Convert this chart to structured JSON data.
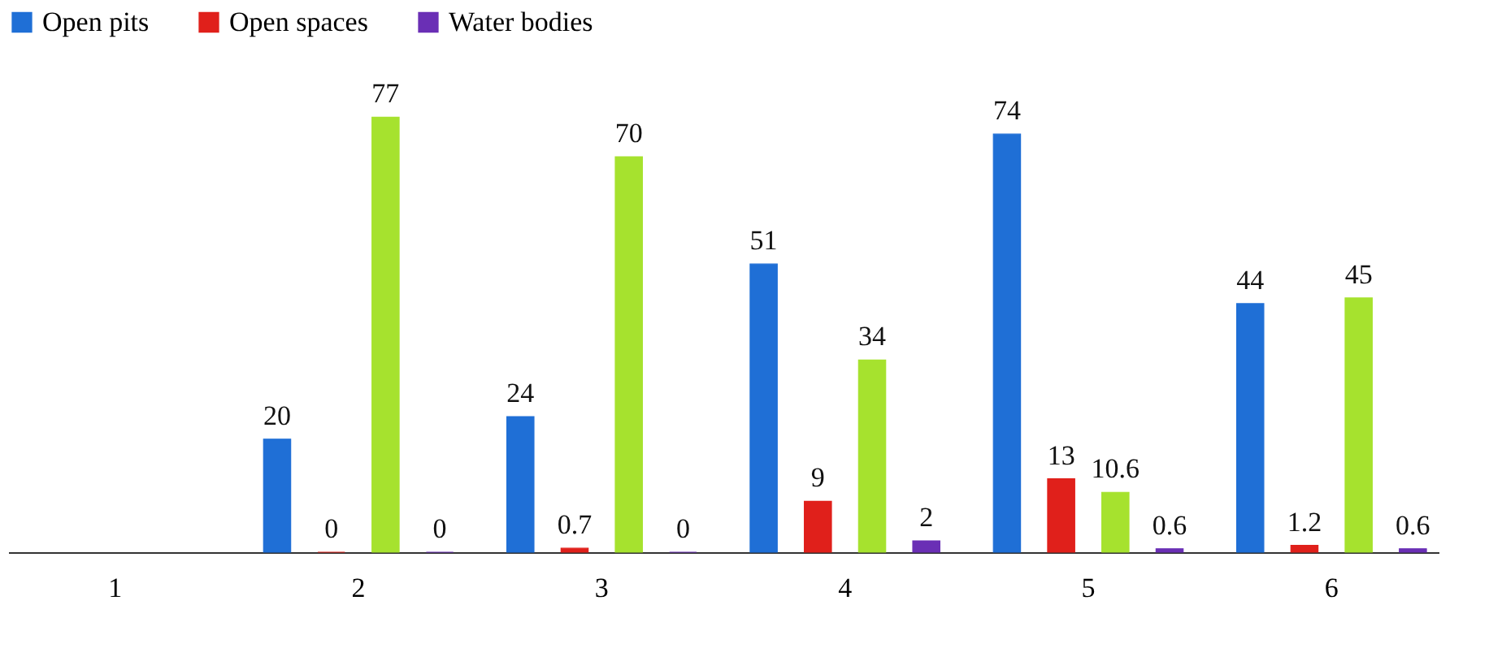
{
  "chart_data": {
    "type": "bar",
    "categories": [
      "1",
      "2",
      "3",
      "4",
      "5",
      "6"
    ],
    "series": [
      {
        "name": "Open pits",
        "color": "#1f6fd6",
        "values": [
          null,
          20,
          24,
          51,
          74,
          44
        ]
      },
      {
        "name": "Open spaces",
        "color": "#e0201b",
        "values": [
          null,
          0,
          0.7,
          9,
          13,
          1.2
        ]
      },
      {
        "color": "#a6e22e",
        "values": [
          null,
          77,
          70,
          34,
          10.6,
          45
        ]
      },
      {
        "name": "Water bodies",
        "color": "#6a2fb5",
        "values": [
          null,
          0,
          0,
          2,
          0.6,
          0.6
        ]
      }
    ],
    "data_labels": true,
    "legend": "top",
    "tick_labels": "x",
    "grid": false
  }
}
